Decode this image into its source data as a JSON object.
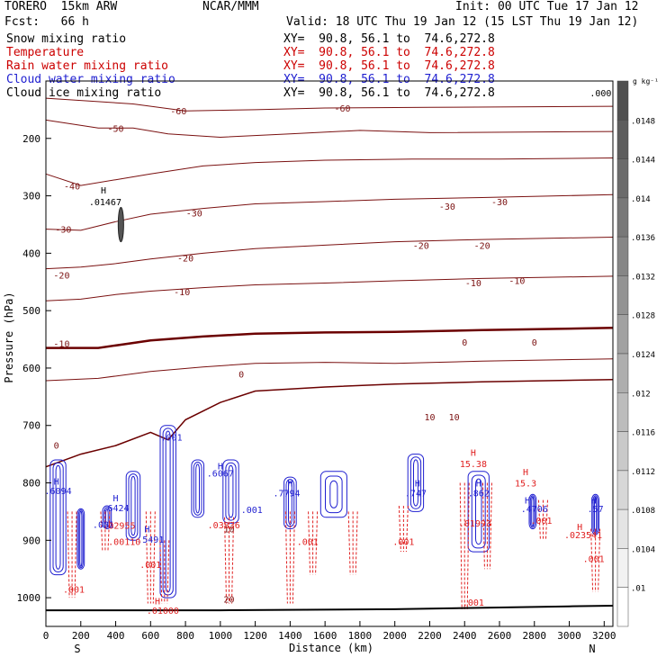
{
  "header": {
    "model": "TORERO  15km ARW",
    "org": "NCAR/MMM",
    "init": "Init: 00 UTC Tue 17 Jan 12",
    "fcst": "Fcst:   66 h",
    "valid": "Valid: 18 UTC Thu 19 Jan 12 (15 LST Thu 19 Jan 12)",
    "fields": [
      {
        "name": "Snow mixing ratio",
        "xy": "XY=  90.8, 56.1 to  74.6,272.8",
        "color": "#000000"
      },
      {
        "name": "Temperature",
        "xy": "XY=  90.8, 56.1 to  74.6,272.8",
        "color": "#cc0000"
      },
      {
        "name": "Rain water mixing ratio",
        "xy": "XY=  90.8, 56.1 to  74.6,272.8",
        "color": "#cc0000"
      },
      {
        "name": "Cloud water mixing ratio",
        "xy": "XY=  90.8, 56.1 to  74.6,272.8",
        "color": "#1f1fd0"
      },
      {
        "name": "Cloud ice mixing ratio",
        "xy": "XY=  90.8, 56.1 to  74.6,272.8",
        "color": "#000000"
      }
    ]
  },
  "colors": {
    "temperature": "#7a1010",
    "freezing": "#6b0000",
    "rain": "#e02020",
    "cloud_water": "#1f1fd0",
    "terrain": "#000000"
  },
  "chart_data": {
    "type": "cross-section",
    "xlabel": "Distance (km)",
    "ylabel": "Pressure (hPa)",
    "xlim": [
      0,
      3250
    ],
    "ylim": [
      1050,
      100
    ],
    "x_ticks": [
      0,
      200,
      400,
      600,
      800,
      1000,
      1200,
      1400,
      1600,
      1800,
      2000,
      2200,
      2400,
      2600,
      2800,
      3000,
      3200
    ],
    "y_ticks": [
      200,
      300,
      400,
      500,
      600,
      700,
      800,
      900,
      1000
    ],
    "endpoints": {
      "left": "S",
      "right": "N"
    },
    "temperature_contours": [
      {
        "value": -60,
        "points": [
          [
            0,
            130
          ],
          [
            500,
            140
          ],
          [
            800,
            152
          ],
          [
            1200,
            150
          ],
          [
            1600,
            147
          ],
          [
            2200,
            146
          ],
          [
            3250,
            144
          ]
        ]
      },
      {
        "value": -50,
        "points": [
          [
            0,
            168
          ],
          [
            300,
            182
          ],
          [
            500,
            182
          ],
          [
            700,
            192
          ],
          [
            1000,
            198
          ],
          [
            1400,
            192
          ],
          [
            1800,
            186
          ],
          [
            2200,
            190
          ],
          [
            3250,
            188
          ]
        ]
      },
      {
        "value": -40,
        "points": [
          [
            0,
            262
          ],
          [
            200,
            282
          ],
          [
            400,
            272
          ],
          [
            600,
            262
          ],
          [
            900,
            248
          ],
          [
            1200,
            242
          ],
          [
            1600,
            238
          ],
          [
            2100,
            236
          ],
          [
            2600,
            236
          ],
          [
            3250,
            234
          ]
        ]
      },
      {
        "value": -30,
        "points": [
          [
            0,
            358
          ],
          [
            200,
            360
          ],
          [
            400,
            345
          ],
          [
            600,
            332
          ],
          [
            900,
            322
          ],
          [
            1200,
            314
          ],
          [
            1600,
            310
          ],
          [
            2000,
            306
          ],
          [
            2500,
            303
          ],
          [
            3250,
            298
          ]
        ]
      },
      {
        "value": -20,
        "points": [
          [
            0,
            427
          ],
          [
            200,
            424
          ],
          [
            400,
            418
          ],
          [
            600,
            410
          ],
          [
            900,
            400
          ],
          [
            1200,
            392
          ],
          [
            1600,
            386
          ],
          [
            2000,
            380
          ],
          [
            2500,
            376
          ],
          [
            3250,
            372
          ]
        ]
      },
      {
        "value": -10,
        "points": [
          [
            0,
            483
          ],
          [
            200,
            480
          ],
          [
            400,
            472
          ],
          [
            600,
            466
          ],
          [
            900,
            460
          ],
          [
            1200,
            455
          ],
          [
            1600,
            452
          ],
          [
            2000,
            448
          ],
          [
            2500,
            444
          ],
          [
            3250,
            440
          ]
        ]
      },
      {
        "value": 0,
        "points": [
          [
            0,
            565
          ],
          [
            300,
            565
          ],
          [
            600,
            552
          ],
          [
            900,
            545
          ],
          [
            1200,
            540
          ],
          [
            1600,
            538
          ],
          [
            2000,
            537
          ],
          [
            2500,
            534
          ],
          [
            3250,
            530
          ]
        ]
      },
      {
        "value": 10,
        "points": [
          [
            0,
            622
          ],
          [
            300,
            618
          ],
          [
            600,
            606
          ],
          [
            900,
            598
          ],
          [
            1200,
            592
          ],
          [
            1600,
            590
          ],
          [
            2000,
            592
          ],
          [
            2500,
            588
          ],
          [
            3250,
            584
          ]
        ]
      }
    ],
    "freezing_level_lower": {
      "value": 0,
      "points": [
        [
          0,
          772
        ],
        [
          200,
          750
        ],
        [
          400,
          735
        ],
        [
          600,
          712
        ],
        [
          700,
          725
        ],
        [
          800,
          690
        ],
        [
          1000,
          660
        ],
        [
          1200,
          640
        ],
        [
          1600,
          633
        ],
        [
          2000,
          628
        ],
        [
          2500,
          624
        ],
        [
          3250,
          620
        ]
      ]
    },
    "contour_labels": [
      {
        "text": "-60",
        "x": 760,
        "p": 152,
        "color": "#7a1010"
      },
      {
        "text": "-60",
        "x": 1700,
        "p": 147,
        "color": "#7a1010"
      },
      {
        "text": "-50",
        "x": 400,
        "p": 182,
        "color": "#7a1010"
      },
      {
        "text": "-40",
        "x": 150,
        "p": 283,
        "color": "#7a1010"
      },
      {
        "text": "-30",
        "x": 850,
        "p": 330,
        "color": "#7a1010"
      },
      {
        "text": "-30",
        "x": 2300,
        "p": 318,
        "color": "#7a1010"
      },
      {
        "text": "-30",
        "x": 2600,
        "p": 310,
        "color": "#7a1010"
      },
      {
        "text": "-30",
        "x": 100,
        "p": 358,
        "color": "#7a1010"
      },
      {
        "text": "-20",
        "x": 800,
        "p": 408,
        "color": "#7a1010"
      },
      {
        "text": "-20",
        "x": 2150,
        "p": 386,
        "color": "#7a1010"
      },
      {
        "text": "-20",
        "x": 2500,
        "p": 386,
        "color": "#7a1010"
      },
      {
        "text": "-20",
        "x": 90,
        "p": 438,
        "color": "#7a1010"
      },
      {
        "text": "-10",
        "x": 780,
        "p": 467,
        "color": "#7a1010"
      },
      {
        "text": "-10",
        "x": 2450,
        "p": 451,
        "color": "#7a1010"
      },
      {
        "text": "-10",
        "x": 2700,
        "p": 447,
        "color": "#7a1010"
      },
      {
        "text": "-10",
        "x": 90,
        "p": 557,
        "color": "#7a1010"
      },
      {
        "text": "0",
        "x": 1120,
        "p": 610,
        "color": "#7a1010"
      },
      {
        "text": "0",
        "x": 2400,
        "p": 555,
        "color": "#7a1010"
      },
      {
        "text": "0",
        "x": 2800,
        "p": 555,
        "color": "#7a1010"
      },
      {
        "text": "0",
        "x": 60,
        "p": 734,
        "color": "#7a1010"
      },
      {
        "text": "10",
        "x": 2200,
        "p": 685,
        "color": "#7a1010"
      },
      {
        "text": "10",
        "x": 2340,
        "p": 685,
        "color": "#7a1010"
      },
      {
        "text": "10",
        "x": 1050,
        "p": 880,
        "color": "#7a1010"
      },
      {
        "text": "20",
        "x": 1050,
        "p": 1002,
        "color": "#7a1010"
      },
      {
        "text": ".001",
        "x": 720,
        "p": 720,
        "color": "#1f1fd0"
      },
      {
        "text": ".6067",
        "x": 1000,
        "p": 783,
        "color": "#1f1fd0"
      },
      {
        "text": ".001",
        "x": 1180,
        "p": 846,
        "color": "#1f1fd0"
      },
      {
        "text": ".6094",
        "x": 70,
        "p": 813,
        "color": "#1f1fd0"
      },
      {
        "text": ".6424",
        "x": 400,
        "p": 843,
        "color": "#1f1fd0"
      },
      {
        "text": ".001",
        "x": 330,
        "p": 872,
        "color": "#1f1fd0"
      },
      {
        "text": ".5491",
        "x": 600,
        "p": 898,
        "color": "#1f1fd0"
      },
      {
        "text": ".7794",
        "x": 1380,
        "p": 817,
        "color": "#1f1fd0"
      },
      {
        "text": ".747",
        "x": 2120,
        "p": 817,
        "color": "#1f1fd0"
      },
      {
        "text": ".862",
        "x": 2480,
        "p": 817,
        "color": "#1f1fd0"
      },
      {
        "text": ".4706",
        "x": 2800,
        "p": 845,
        "color": "#1f1fd0"
      },
      {
        "text": ".57",
        "x": 3150,
        "p": 845,
        "color": "#1f1fd0"
      },
      {
        "text": ".02955",
        "x": 420,
        "p": 874,
        "color": "#e02020"
      },
      {
        "text": ".00110",
        "x": 450,
        "p": 902,
        "color": "#e02020"
      },
      {
        "text": ".001",
        "x": 160,
        "p": 985,
        "color": "#e02020"
      },
      {
        "text": ".001",
        "x": 600,
        "p": 942,
        "color": "#e02020"
      },
      {
        "text": ".03836",
        "x": 1020,
        "p": 873,
        "color": "#e02020"
      },
      {
        "text": ".001",
        "x": 1500,
        "p": 902,
        "color": "#e02020"
      },
      {
        "text": ".001",
        "x": 2050,
        "p": 902,
        "color": "#e02020"
      },
      {
        "text": ".01993",
        "x": 2460,
        "p": 870,
        "color": "#e02020"
      },
      {
        "text": ".001",
        "x": 2840,
        "p": 865,
        "color": "#e02020"
      },
      {
        "text": ".001",
        "x": 3140,
        "p": 932,
        "color": "#e02020"
      },
      {
        "text": ".001",
        "x": 2450,
        "p": 1008,
        "color": "#e02020"
      },
      {
        "text": ".023541",
        "x": 3080,
        "p": 890,
        "color": "#e02020"
      },
      {
        "text": ".01000",
        "x": 670,
        "p": 1022,
        "color": "#e02020"
      },
      {
        "text": ".000",
        "x": 3180,
        "p": 120,
        "color": "#000000"
      }
    ],
    "maxima_labels": [
      {
        "text": "H",
        "x": 330,
        "p": 290,
        "color": "#000000"
      },
      {
        "text": ".01467",
        "x": 340,
        "p": 310,
        "color": "#000000"
      },
      {
        "text": "H",
        "x": 2450,
        "p": 747,
        "color": "#e02020"
      },
      {
        "text": "15.38",
        "x": 2450,
        "p": 766,
        "color": "#e02020"
      },
      {
        "text": "H",
        "x": 2750,
        "p": 780,
        "color": "#e02020"
      },
      {
        "text": "15.3",
        "x": 2750,
        "p": 800,
        "color": "#e02020"
      },
      {
        "text": "H",
        "x": 60,
        "p": 797,
        "color": "#1f1fd0"
      },
      {
        "text": "H",
        "x": 1000,
        "p": 770,
        "color": "#1f1fd0"
      },
      {
        "text": "H",
        "x": 1400,
        "p": 800,
        "color": "#1f1fd0"
      },
      {
        "text": "H",
        "x": 2130,
        "p": 800,
        "color": "#1f1fd0"
      },
      {
        "text": "H",
        "x": 2480,
        "p": 800,
        "color": "#1f1fd0"
      },
      {
        "text": "H",
        "x": 400,
        "p": 826,
        "color": "#1f1fd0"
      },
      {
        "text": "H",
        "x": 580,
        "p": 880,
        "color": "#1f1fd0"
      },
      {
        "text": "H",
        "x": 2760,
        "p": 830,
        "color": "#1f1fd0"
      },
      {
        "text": "H",
        "x": 3140,
        "p": 830,
        "color": "#1f1fd0"
      },
      {
        "text": "H",
        "x": 3060,
        "p": 876,
        "color": "#e02020"
      },
      {
        "text": "H",
        "x": 640,
        "p": 1005,
        "color": "#e02020"
      }
    ],
    "cloud_water_cells": [
      {
        "x": 70,
        "width": 90,
        "ptop": 760,
        "pbot": 960
      },
      {
        "x": 200,
        "width": 40,
        "ptop": 845,
        "pbot": 950
      },
      {
        "x": 350,
        "width": 50,
        "ptop": 840,
        "pbot": 880
      },
      {
        "x": 500,
        "width": 80,
        "ptop": 780,
        "pbot": 900
      },
      {
        "x": 700,
        "width": 90,
        "ptop": 700,
        "pbot": 1000
      },
      {
        "x": 870,
        "width": 70,
        "ptop": 760,
        "pbot": 860
      },
      {
        "x": 1060,
        "width": 90,
        "ptop": 760,
        "pbot": 870
      },
      {
        "x": 1400,
        "width": 70,
        "ptop": 790,
        "pbot": 880
      },
      {
        "x": 1650,
        "width": 150,
        "ptop": 780,
        "pbot": 860
      },
      {
        "x": 2120,
        "width": 90,
        "ptop": 750,
        "pbot": 850
      },
      {
        "x": 2480,
        "width": 120,
        "ptop": 780,
        "pbot": 920
      },
      {
        "x": 2790,
        "width": 40,
        "ptop": 820,
        "pbot": 880
      },
      {
        "x": 3150,
        "width": 40,
        "ptop": 820,
        "pbot": 890
      }
    ],
    "rain_cells": [
      {
        "x": 150,
        "ptop": 850,
        "pbot": 1000
      },
      {
        "x": 340,
        "ptop": 850,
        "pbot": 920
      },
      {
        "x": 600,
        "ptop": 850,
        "pbot": 1010
      },
      {
        "x": 680,
        "ptop": 900,
        "pbot": 1010
      },
      {
        "x": 1050,
        "ptop": 860,
        "pbot": 1010
      },
      {
        "x": 1400,
        "ptop": 850,
        "pbot": 1010
      },
      {
        "x": 1530,
        "ptop": 850,
        "pbot": 960
      },
      {
        "x": 1760,
        "ptop": 850,
        "pbot": 960
      },
      {
        "x": 2050,
        "ptop": 840,
        "pbot": 920
      },
      {
        "x": 2400,
        "ptop": 800,
        "pbot": 1020
      },
      {
        "x": 2530,
        "ptop": 800,
        "pbot": 950
      },
      {
        "x": 2850,
        "ptop": 830,
        "pbot": 900
      },
      {
        "x": 3150,
        "ptop": 880,
        "pbot": 990
      }
    ],
    "ice_cells": [
      {
        "x": 430,
        "ptop": 320,
        "pbot": 380
      }
    ],
    "terrain": [
      [
        0,
        1022
      ],
      [
        1000,
        1022
      ],
      [
        2000,
        1020
      ],
      [
        3000,
        1015
      ],
      [
        3250,
        1014
      ]
    ],
    "colorbar": {
      "unit": "g kg⁻¹",
      "labels": [
        ".0148",
        ".0144",
        ".014",
        ".0136",
        ".0132",
        ".0128",
        ".0124",
        ".012",
        ".0116",
        ".0112",
        ".0108",
        ".0104",
        ".01"
      ]
    }
  }
}
